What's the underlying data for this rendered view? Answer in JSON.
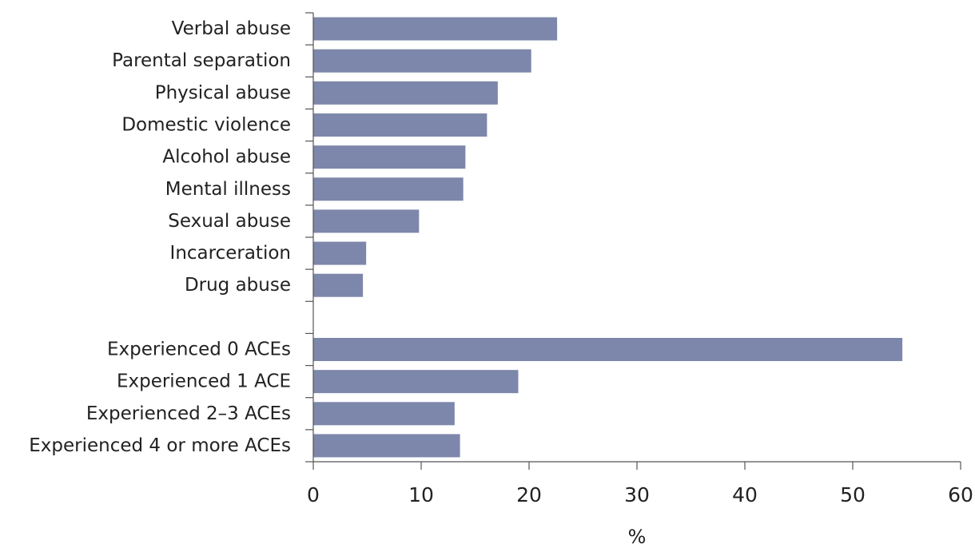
{
  "chart_data": {
    "type": "bar",
    "orientation": "horizontal",
    "categories": [
      "Verbal abuse",
      "Parental separation",
      "Physical abuse",
      "Domestic violence",
      "Alcohol abuse",
      "Mental illness",
      "Sexual abuse",
      "Incarceration",
      "Drug abuse",
      "",
      "Experienced 0 ACEs",
      "Experienced 1 ACE",
      "Experienced 2–3 ACEs",
      "Experienced 4 or more ACEs"
    ],
    "values": [
      22.6,
      20.2,
      17.1,
      16.1,
      14.1,
      13.9,
      9.8,
      4.9,
      4.6,
      null,
      54.6,
      19.0,
      13.1,
      13.6
    ],
    "title": "",
    "xlabel": "%",
    "ylabel": "",
    "xlim": [
      0,
      60
    ],
    "xticks": [
      "0",
      "10",
      "20",
      "30",
      "40",
      "50",
      "60"
    ],
    "grid": false,
    "legend": "none",
    "bar_color": "#7d87ab"
  }
}
